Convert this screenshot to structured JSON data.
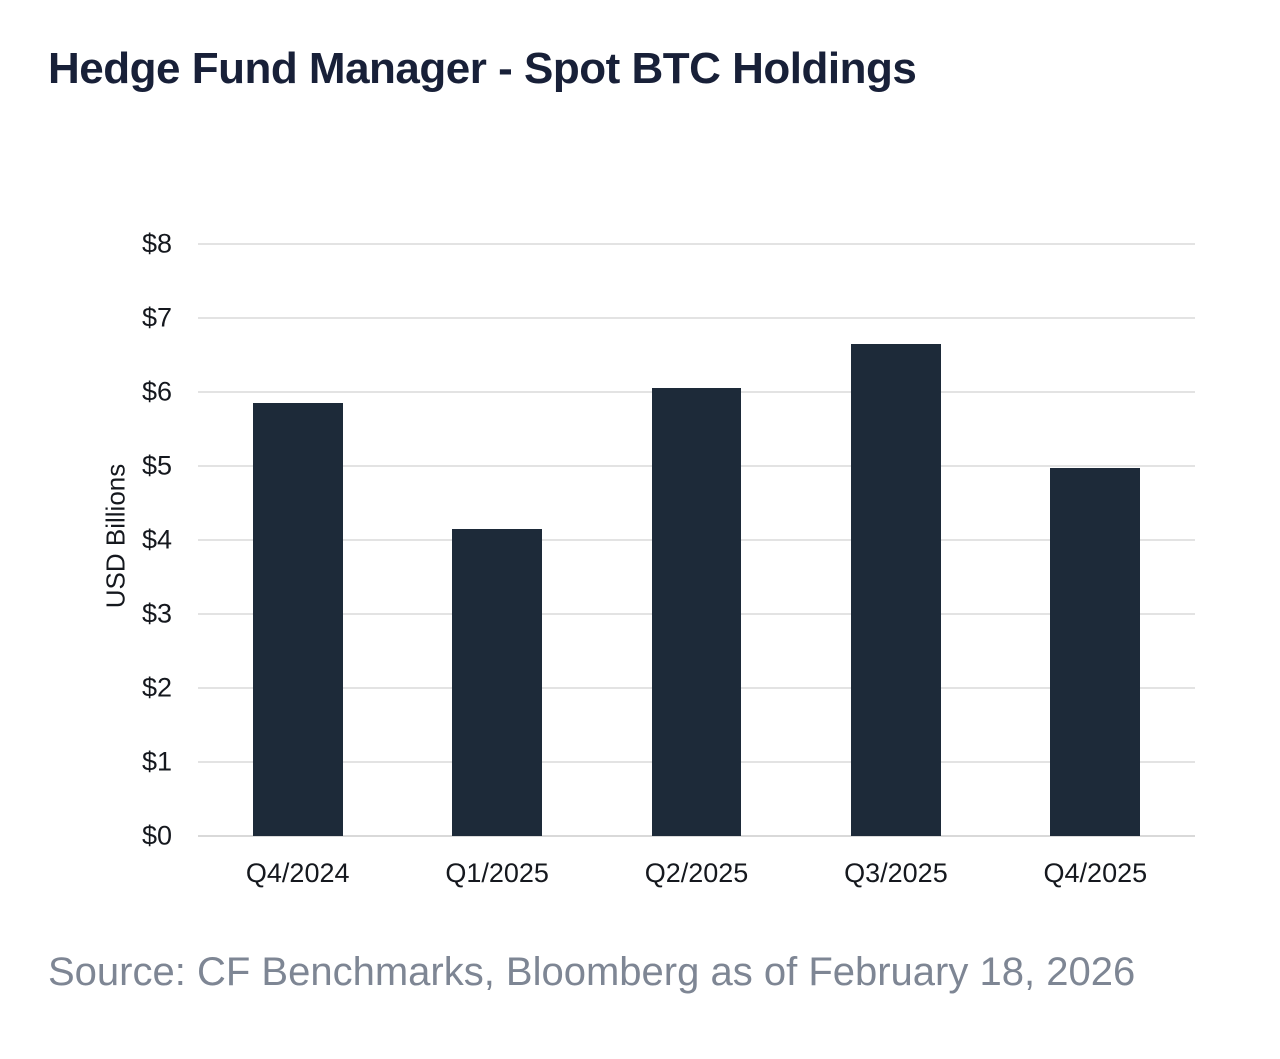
{
  "chart_data": {
    "type": "bar",
    "title": "Hedge Fund Manager - Spot BTC Holdings",
    "categories": [
      "Q4/2024",
      "Q1/2025",
      "Q2/2025",
      "Q3/2025",
      "Q4/2025"
    ],
    "values": [
      5.85,
      4.15,
      6.05,
      6.65,
      4.97
    ],
    "xlabel": "",
    "ylabel": "USD Billions",
    "ylim": [
      0,
      8
    ],
    "y_ticks": [
      0,
      1,
      2,
      3,
      4,
      5,
      6,
      7,
      8
    ],
    "y_tick_labels": [
      "$0",
      "$1",
      "$2",
      "$3",
      "$4",
      "$5",
      "$6",
      "$7",
      "$8"
    ],
    "grid": true,
    "legend": false,
    "source": "Source: CF Benchmarks, Bloomberg as of February 18, 2026"
  },
  "colors": {
    "title": "#182038",
    "axis_text": "#15181e",
    "gridline": "#e3e3e3",
    "baseline": "#d9d9d9",
    "bar": "#1d2a39",
    "source_text": "#7e8694",
    "background": "#ffffff"
  }
}
